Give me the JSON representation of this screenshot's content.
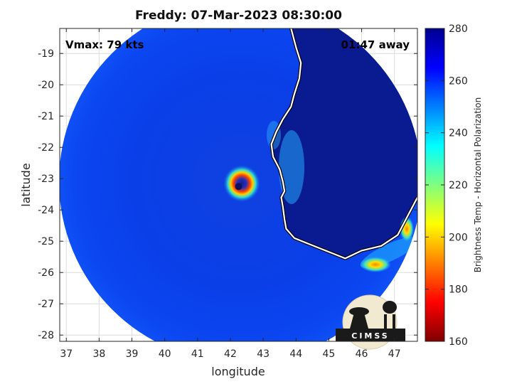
{
  "chart_data": {
    "type": "heatmap",
    "title": "Freddy: 07-Mar-2023 08:30:00",
    "xlabel": "longitude",
    "ylabel": "latitude",
    "xlim": [
      36.8,
      47.7
    ],
    "ylim": [
      -28.2,
      -18.2
    ],
    "xticks": [
      37,
      38,
      39,
      40,
      41,
      42,
      43,
      44,
      45,
      46,
      47
    ],
    "yticks": [
      -19,
      -20,
      -21,
      -22,
      -23,
      -24,
      -25,
      -26,
      -27,
      -28
    ],
    "grid": true,
    "annotations": {
      "vmax": "Vmax: 79 kts",
      "time_away": "01:47 away"
    },
    "colorbar": {
      "label": "Brightness Temp - Horizontal Polarization",
      "range": [
        160,
        280
      ],
      "ticks": [
        160,
        180,
        200,
        220,
        240,
        260,
        280
      ],
      "colormap": "jet"
    },
    "storm_center": {
      "lon": 42.25,
      "lat": -23.25
    },
    "coastline": [
      [
        43.85,
        -18.2
      ],
      [
        44.0,
        -18.8
      ],
      [
        44.15,
        -19.3
      ],
      [
        44.1,
        -19.8
      ],
      [
        43.95,
        -20.3
      ],
      [
        43.85,
        -20.7
      ],
      [
        43.6,
        -21.1
      ],
      [
        43.4,
        -21.5
      ],
      [
        43.25,
        -21.9
      ],
      [
        43.3,
        -22.3
      ],
      [
        43.5,
        -22.7
      ],
      [
        43.6,
        -23.1
      ],
      [
        43.65,
        -23.4
      ],
      [
        43.55,
        -23.6
      ],
      [
        43.6,
        -23.9
      ],
      [
        43.65,
        -24.3
      ],
      [
        43.7,
        -24.6
      ],
      [
        43.95,
        -24.9
      ],
      [
        44.3,
        -25.05
      ],
      [
        44.9,
        -25.3
      ],
      [
        45.5,
        -25.55
      ],
      [
        46.0,
        -25.3
      ],
      [
        46.6,
        -25.15
      ],
      [
        47.1,
        -24.8
      ],
      [
        47.35,
        -24.3
      ],
      [
        47.6,
        -23.8
      ],
      [
        47.7,
        -23.6
      ]
    ]
  },
  "logo": {
    "text": "CIMSS"
  }
}
